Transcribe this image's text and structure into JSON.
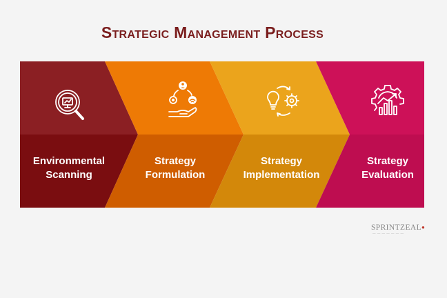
{
  "title": "Strategic Management Process",
  "stages": [
    {
      "line1": "Environmental",
      "line2": "Scanning",
      "icon": "magnifier-monitor-icon",
      "top_color": "#8b1f23",
      "bottom_color": "#7a0d10"
    },
    {
      "line1": "Strategy",
      "line2": "Formulation",
      "icon": "hand-gear-wifi-icon",
      "top_color": "#ee7a05",
      "bottom_color": "#cf5d00"
    },
    {
      "line1": "Strategy",
      "line2": "Implementation",
      "icon": "bulb-gear-cycle-icon",
      "top_color": "#eba41c",
      "bottom_color": "#d3880a"
    },
    {
      "line1": "Strategy",
      "line2": "Evaluation",
      "icon": "gear-growth-chart-icon",
      "top_color": "#cd1158",
      "bottom_color": "#be0d50"
    }
  ],
  "logo": {
    "name": "SPRINTZEAL"
  }
}
